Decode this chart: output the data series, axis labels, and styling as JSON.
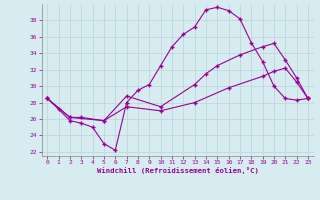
{
  "xlabel": "Windchill (Refroidissement éolien,°C)",
  "background_color": "#d6ecf0",
  "grid_color": "#b8d4d8",
  "line_color": "#990099",
  "xlim": [
    -0.5,
    23.5
  ],
  "ylim": [
    21.5,
    40.0
  ],
  "yticks": [
    22,
    24,
    26,
    28,
    30,
    32,
    34,
    36,
    38
  ],
  "xticks": [
    0,
    1,
    2,
    3,
    4,
    5,
    6,
    7,
    8,
    9,
    10,
    11,
    12,
    13,
    14,
    15,
    16,
    17,
    18,
    19,
    20,
    21,
    22,
    23
  ],
  "line1_x": [
    0,
    1,
    2,
    3,
    4,
    5,
    6,
    7,
    8,
    9,
    10,
    11,
    12,
    13,
    14,
    15,
    16,
    17,
    18,
    19,
    20,
    21,
    22,
    23
  ],
  "line1_y": [
    28.5,
    27.2,
    25.8,
    25.5,
    25.0,
    23.0,
    22.2,
    28.0,
    29.5,
    30.2,
    32.5,
    34.8,
    36.3,
    37.2,
    39.3,
    39.6,
    39.2,
    38.2,
    35.3,
    33.0,
    30.0,
    28.5,
    28.3,
    28.5
  ],
  "line2_x": [
    0,
    2,
    3,
    5,
    7,
    10,
    13,
    14,
    15,
    17,
    19,
    20,
    21,
    22,
    23
  ],
  "line2_y": [
    28.5,
    26.2,
    26.2,
    25.8,
    28.8,
    27.5,
    30.2,
    31.5,
    32.5,
    33.8,
    34.8,
    35.2,
    33.2,
    31.0,
    28.5
  ],
  "line3_x": [
    0,
    2,
    5,
    7,
    10,
    13,
    16,
    19,
    20,
    21,
    22,
    23
  ],
  "line3_y": [
    28.5,
    26.2,
    25.8,
    27.5,
    27.0,
    28.0,
    29.8,
    31.2,
    31.8,
    32.2,
    30.5,
    28.5
  ]
}
